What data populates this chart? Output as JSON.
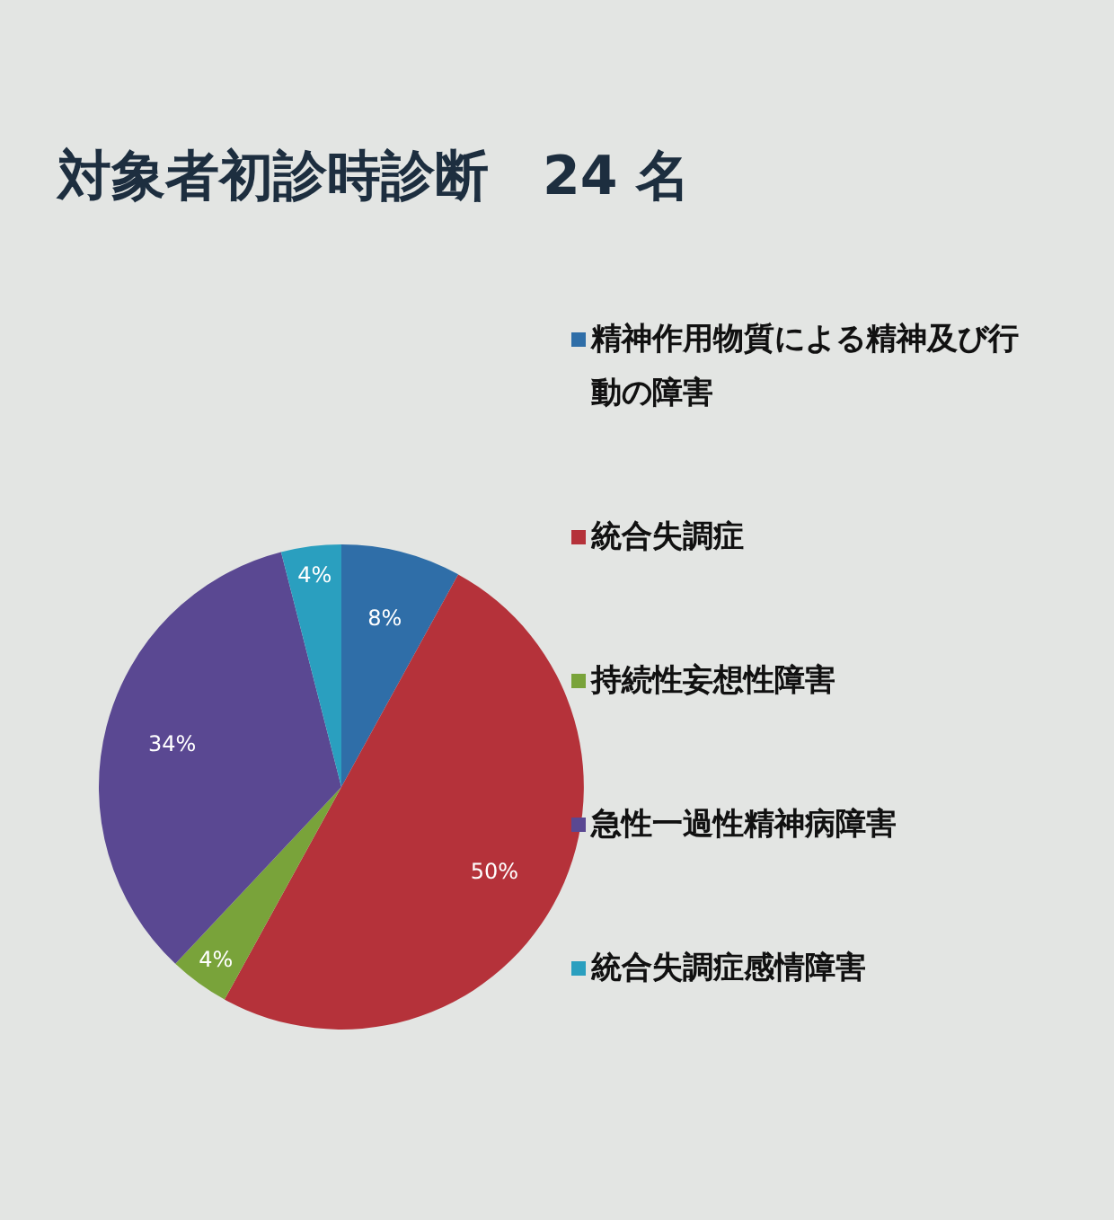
{
  "chart_data": {
    "type": "pie",
    "title": "対象者初診時診断　24 名",
    "categories": [
      "精神作用物質による精神及び行動の障害",
      "統合失調症",
      "持続性妄想性障害",
      "急性一過性精神病障害",
      "統合失調症感情障害"
    ],
    "values": [
      8,
      50,
      4,
      34,
      4
    ],
    "value_labels": [
      "8%",
      "50%",
      "4%",
      "34%",
      "4%"
    ],
    "colors": [
      "#2f6ea8",
      "#b5323a",
      "#79a33a",
      "#5a4892",
      "#2a9fbf"
    ],
    "legend": "right"
  }
}
